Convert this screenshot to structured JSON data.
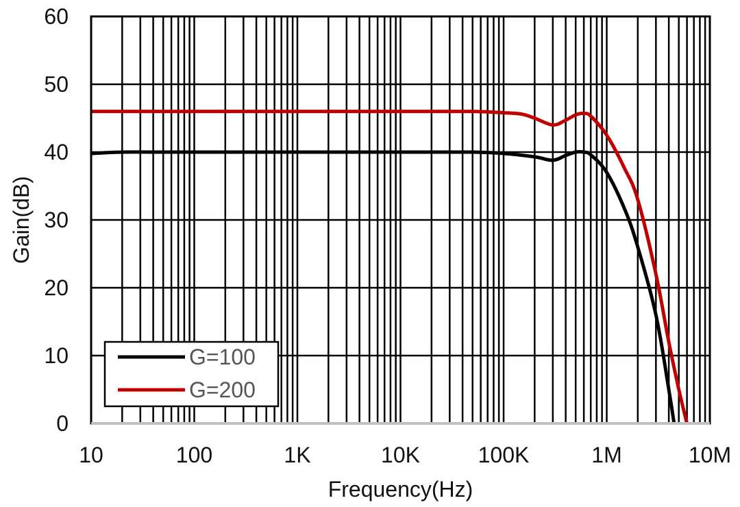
{
  "chart_data": {
    "type": "line",
    "title": "",
    "xlabel": "Frequency(Hz)",
    "ylabel": "Gain(dB)",
    "x_scale": "log",
    "xlim": [
      10,
      10000000
    ],
    "ylim": [
      0,
      60
    ],
    "x_ticks": [
      {
        "value": 10,
        "label": "10"
      },
      {
        "value": 100,
        "label": "100"
      },
      {
        "value": 1000,
        "label": "1K"
      },
      {
        "value": 10000,
        "label": "10K"
      },
      {
        "value": 100000,
        "label": "100K"
      },
      {
        "value": 1000000,
        "label": "1M"
      },
      {
        "value": 10000000,
        "label": "10M"
      }
    ],
    "y_ticks": [
      {
        "value": 0,
        "label": "0"
      },
      {
        "value": 10,
        "label": "10"
      },
      {
        "value": 20,
        "label": "20"
      },
      {
        "value": 30,
        "label": "30"
      },
      {
        "value": 40,
        "label": "40"
      },
      {
        "value": 50,
        "label": "50"
      },
      {
        "value": 60,
        "label": "60"
      }
    ],
    "grid": true,
    "legend_position": "bottom-left",
    "series": [
      {
        "name": "G=100",
        "color": "#000000",
        "x": [
          10,
          20,
          50,
          100,
          1000,
          10000,
          50000,
          100000,
          200000,
          300000,
          400000,
          500000,
          600000,
          700000,
          1000000,
          1500000,
          2000000,
          3000000,
          4000000,
          4500000
        ],
        "y": [
          39.8,
          40.0,
          40.0,
          40.0,
          40.0,
          40.0,
          40.0,
          39.8,
          39.3,
          38.8,
          39.5,
          40.0,
          40.0,
          39.6,
          37.0,
          31.5,
          26.0,
          16.0,
          5.0,
          0.0
        ]
      },
      {
        "name": "G=200",
        "color": "#c00000",
        "x": [
          10,
          100,
          1000,
          10000,
          50000,
          100000,
          150000,
          200000,
          300000,
          400000,
          500000,
          600000,
          700000,
          1000000,
          1500000,
          2000000,
          3000000,
          4000000,
          5000000,
          6000000
        ],
        "y": [
          46.0,
          46.0,
          46.0,
          46.0,
          46.0,
          45.8,
          45.6,
          45.0,
          44.0,
          44.7,
          45.5,
          45.7,
          45.3,
          42.5,
          37.5,
          33.0,
          22.0,
          12.0,
          5.0,
          0.0
        ]
      }
    ]
  }
}
